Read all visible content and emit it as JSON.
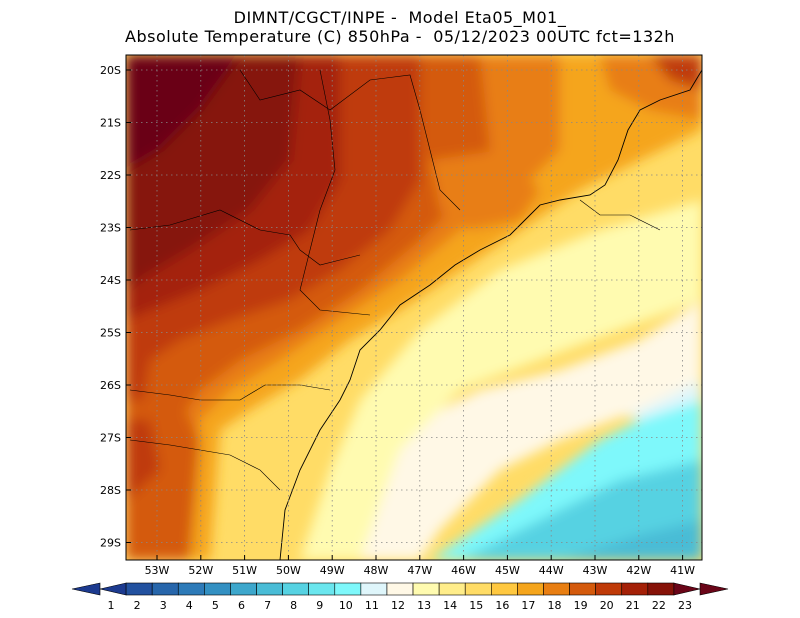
{
  "header": {
    "line1": "DIMNT/CGCT/INPE -  Model Eta05_M01_",
    "line2": "Absolute Temperature (C) 850hPa -  05/12/2023 00UTC fct=132h"
  },
  "map": {
    "lat_labels": [
      "20S",
      "21S",
      "22S",
      "23S",
      "24S",
      "25S",
      "26S",
      "27S",
      "28S",
      "29S"
    ],
    "lon_labels": [
      "53W",
      "52W",
      "51W",
      "50W",
      "49W",
      "48W",
      "47W",
      "46W",
      "45W",
      "44W",
      "43W",
      "42W",
      "41W"
    ]
  },
  "colorbar": {
    "labels": [
      "1",
      "2",
      "3",
      "4",
      "5",
      "6",
      "7",
      "8",
      "9",
      "10",
      "11",
      "12",
      "13",
      "14",
      "15",
      "16",
      "17",
      "18",
      "19",
      "20",
      "21",
      "22",
      "23"
    ],
    "colors": [
      "#1c3a8f",
      "#22519f",
      "#2766ab",
      "#2d7ab8",
      "#3390c2",
      "#3da7cc",
      "#49bcd6",
      "#56d2e2",
      "#6ae6ee",
      "#7ef8fb",
      "#dff6fb",
      "#fff8e6",
      "#fffbb0",
      "#ffed8a",
      "#ffdc66",
      "#ffc840",
      "#f5a51c",
      "#e87e12",
      "#d45a0c",
      "#bf3a08",
      "#a42007",
      "#861208",
      "#6a0518"
    ]
  }
}
